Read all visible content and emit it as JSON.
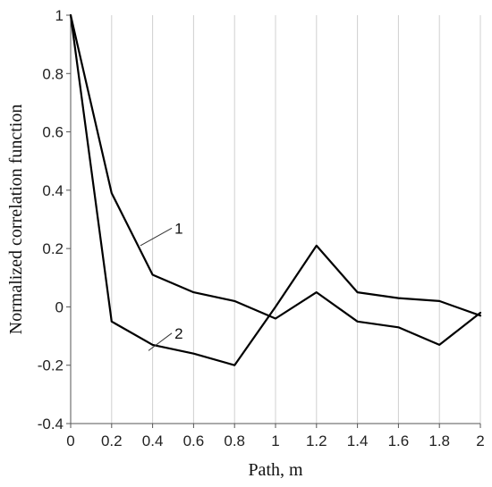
{
  "chart_data": {
    "type": "line",
    "xlabel": "Path, m",
    "ylabel": "Normalized correlation function",
    "xlim": [
      0,
      2
    ],
    "ylim": [
      -0.4,
      1
    ],
    "x_ticks": [
      0,
      0.2,
      0.4,
      0.6,
      0.8,
      1,
      1.2,
      1.4,
      1.6,
      1.8,
      2
    ],
    "x_tick_labels": [
      "0",
      "0.2",
      "0.4",
      "0.6",
      "0.8",
      "1",
      "1.2",
      "1.4",
      "1.6",
      "1.8",
      "2"
    ],
    "y_ticks": [
      -0.4,
      -0.2,
      0,
      0.2,
      0.4,
      0.6,
      0.8,
      1
    ],
    "y_tick_labels": [
      "-0.4",
      "-0.2",
      "0",
      "0.2",
      "0.4",
      "0.6",
      "0.8",
      "1"
    ],
    "grid": "vertical",
    "line_color": "#000000",
    "grid_color": "#d0d0d0",
    "series": [
      {
        "name": "1",
        "x": [
          0,
          0.2,
          0.4,
          0.6,
          0.8,
          1.0,
          1.2,
          1.4,
          1.6,
          1.8,
          2.0
        ],
        "values": [
          1.0,
          0.39,
          0.11,
          0.05,
          0.02,
          -0.04,
          0.05,
          -0.05,
          -0.07,
          -0.13,
          -0.02
        ],
        "label_anchor": {
          "x": 0.34,
          "y": 0.21
        },
        "label_pos": {
          "x": 0.52,
          "y": 0.27
        }
      },
      {
        "name": "2",
        "x": [
          0,
          0.2,
          0.4,
          0.6,
          0.8,
          1.0,
          1.2,
          1.4,
          1.6,
          1.8,
          2.0
        ],
        "values": [
          1.0,
          -0.05,
          -0.13,
          -0.16,
          -0.2,
          0.0,
          0.21,
          0.05,
          0.03,
          0.02,
          -0.03
        ],
        "label_anchor": {
          "x": 0.38,
          "y": -0.15
        },
        "label_pos": {
          "x": 0.52,
          "y": -0.09
        }
      }
    ]
  }
}
